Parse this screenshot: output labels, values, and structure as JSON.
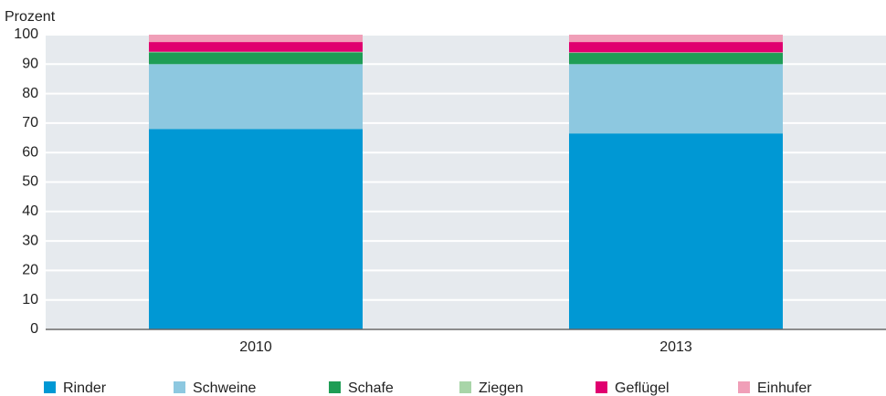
{
  "chart_data": {
    "type": "stacked_bar",
    "y_label": "Prozent",
    "categories": [
      "2010",
      "2013"
    ],
    "series": [
      {
        "name": "Rinder",
        "color": "#0098d4",
        "values": [
          68,
          66.5
        ]
      },
      {
        "name": "Schweine",
        "color": "#8dc8e0",
        "values": [
          22,
          23.5
        ]
      },
      {
        "name": "Schafe",
        "color": "#1f9d55",
        "values": [
          4,
          3.8
        ]
      },
      {
        "name": "Ziegen",
        "color": "#a8d5a8",
        "values": [
          0.2,
          0.2
        ]
      },
      {
        "name": "Geflügel",
        "color": "#e0006f",
        "values": [
          3.3,
          3.5
        ]
      },
      {
        "name": "Einhufer",
        "color": "#f09fb8",
        "values": [
          2.5,
          2.5
        ]
      }
    ],
    "ylim": [
      0,
      100
    ],
    "yticks": [
      0,
      10,
      20,
      30,
      40,
      50,
      60,
      70,
      80,
      90,
      100
    ],
    "grid": true
  }
}
